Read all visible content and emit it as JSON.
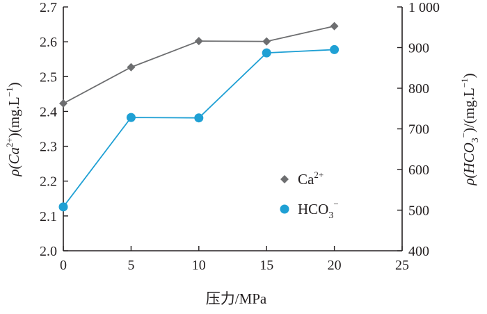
{
  "chart_data": {
    "type": "line",
    "xlabel": "压力/MPa",
    "ylabel_left": {
      "base": "ρ(Ca",
      "sup": "2+",
      "tail": ")(mg.L",
      "unit_sup": "−1",
      "close": ")"
    },
    "ylabel_right": {
      "base": "ρ(HCO",
      "sub": "3",
      "sup": "−",
      "tail": ")/(mg.L",
      "unit_sup": "−1",
      "close": ")"
    },
    "xlim": [
      0,
      25
    ],
    "ylim_left": [
      2.0,
      2.7
    ],
    "ylim_right": [
      400,
      1000
    ],
    "x_ticks": [
      "0",
      "5",
      "10",
      "15",
      "20",
      "25"
    ],
    "y_left_ticks": [
      "2.0",
      "2.1",
      "2.2",
      "2.3",
      "2.4",
      "2.5",
      "2.6",
      "2.7"
    ],
    "y_right_ticks": [
      "400",
      "500",
      "600",
      "700",
      "800",
      "900",
      "1 000"
    ],
    "grid": false,
    "legend_position": "center-right",
    "series": [
      {
        "name": "Ca",
        "name_sup": "2+",
        "axis": "left",
        "marker": "diamond",
        "color": "#6d6e70",
        "x": [
          0,
          5,
          10,
          15,
          20
        ],
        "values": [
          2.423,
          2.527,
          2.602,
          2.601,
          2.645
        ]
      },
      {
        "name": "HCO",
        "name_sub": "3",
        "name_sup": "−",
        "axis": "right",
        "marker": "circle",
        "color": "#1fa0d4",
        "x": [
          0,
          5,
          10,
          15,
          20
        ],
        "values": [
          508,
          728,
          727,
          887,
          895
        ]
      }
    ]
  }
}
